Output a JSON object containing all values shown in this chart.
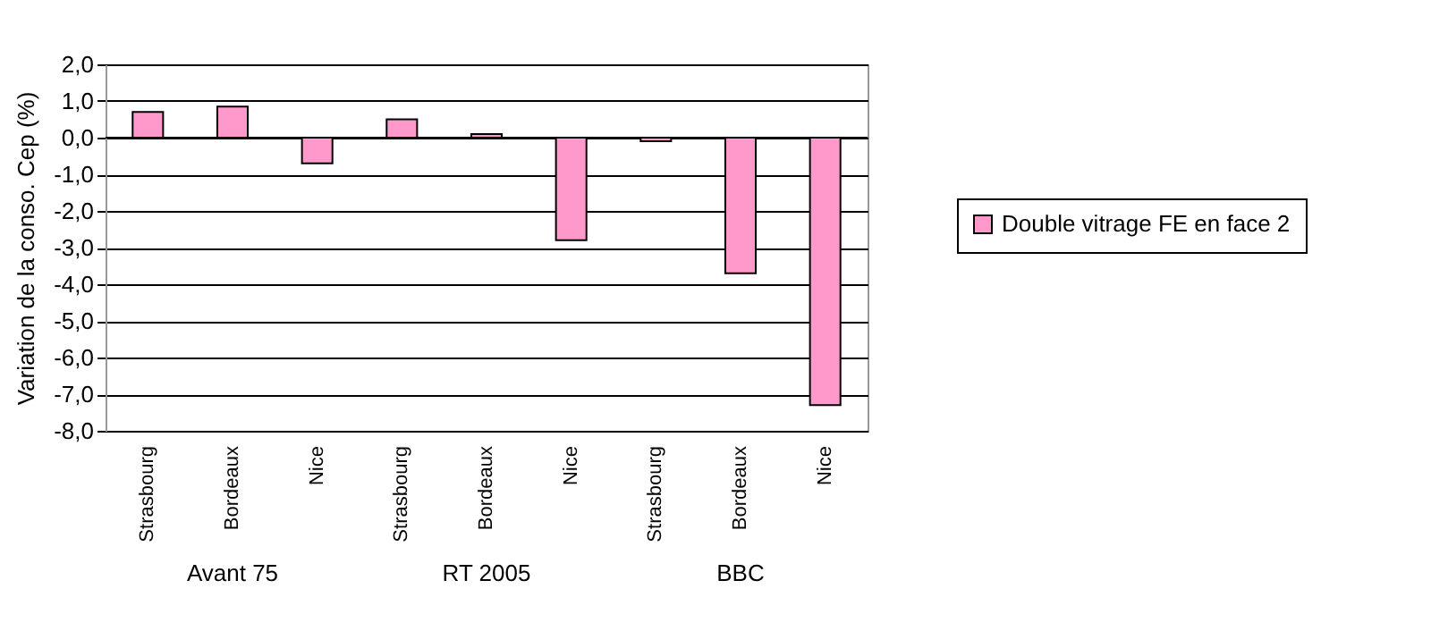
{
  "chart_data": {
    "type": "bar",
    "ylabel": "Variation de la conso. Cep (%)",
    "categories": [
      "Strasbourg",
      "Bordeaux",
      "Nice",
      "Strasbourg",
      "Bordeaux",
      "Nice",
      "Strasbourg",
      "Bordeaux",
      "Nice"
    ],
    "series": [
      {
        "name": "Double vitrage FE en face 2",
        "color": "#ff99cc",
        "values": [
          0.7,
          0.85,
          -0.7,
          0.5,
          0.1,
          -2.8,
          -0.1,
          -3.7,
          -7.3
        ]
      }
    ],
    "annotations": [
      "Avant 75",
      "RT 2005",
      "BBC"
    ],
    "ylim": [
      -8,
      2
    ],
    "yticks": [
      {
        "value": 2,
        "label": "2,0"
      },
      {
        "value": 1,
        "label": "1,0"
      },
      {
        "value": 0,
        "label": "0,0"
      },
      {
        "value": -1,
        "label": "-1,0"
      },
      {
        "value": -2,
        "label": "-2,0"
      },
      {
        "value": -3,
        "label": "-3,0"
      },
      {
        "value": -4,
        "label": "-4,0"
      },
      {
        "value": -5,
        "label": "-5,0"
      },
      {
        "value": -6,
        "label": "-6,0"
      },
      {
        "value": -7,
        "label": "-7,0"
      },
      {
        "value": -8,
        "label": "-8,0"
      }
    ],
    "grid": "y",
    "legend": "right"
  }
}
